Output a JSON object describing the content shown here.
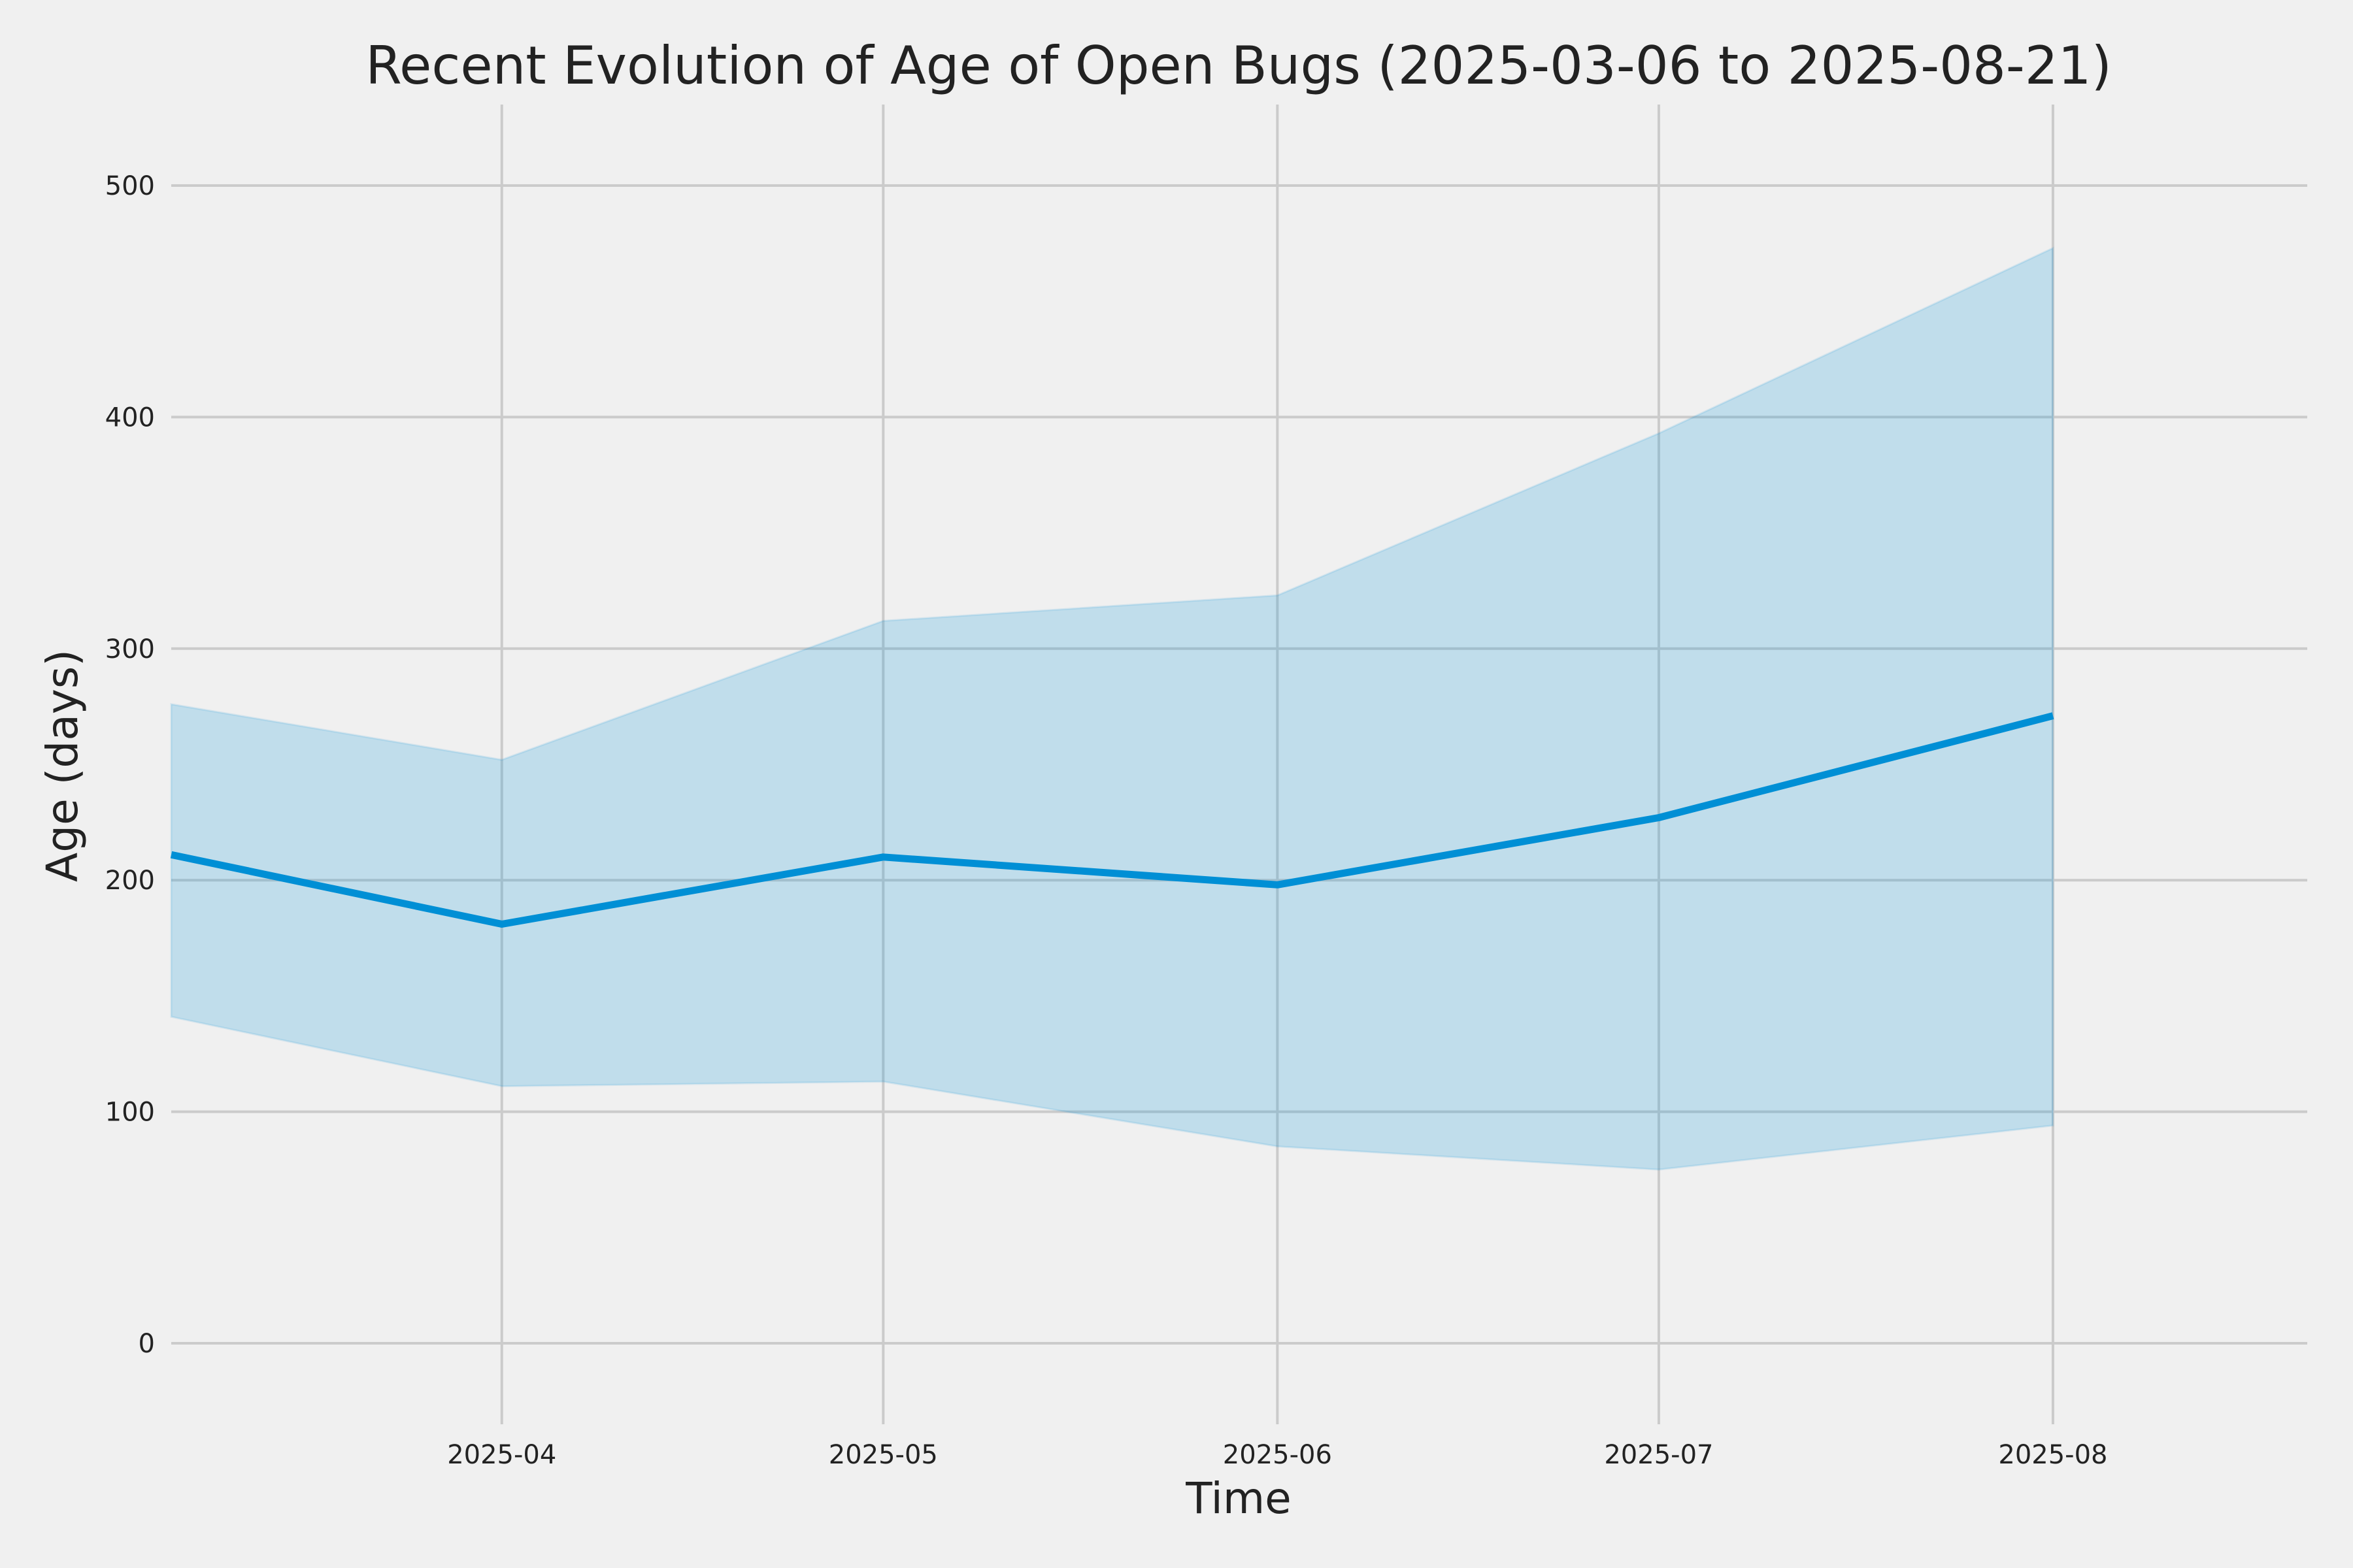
{
  "chart_data": {
    "type": "line",
    "title": "Recent Evolution of Age of Open Bugs (2025-03-06 to 2025-08-21)",
    "xlabel": "Time",
    "ylabel": "Age (days)",
    "x": [
      "2025-03-06",
      "2025-04-01",
      "2025-05-01",
      "2025-06-01",
      "2025-07-01",
      "2025-08-01"
    ],
    "series": [
      {
        "values": [
          211,
          181,
          210,
          198,
          227,
          271
        ],
        "upper": [
          276,
          252,
          312,
          323,
          393,
          473
        ],
        "lower": [
          141,
          111,
          113,
          85,
          75,
          94
        ]
      }
    ],
    "x_ticks": [
      "2025-04",
      "2025-05",
      "2025-06",
      "2025-07",
      "2025-08"
    ],
    "x_tick_dates": [
      "2025-04-01",
      "2025-05-01",
      "2025-06-01",
      "2025-07-01",
      "2025-08-01"
    ],
    "xlim": [
      "2025-03-06",
      "2025-08-21"
    ],
    "y_ticks": [
      0,
      100,
      200,
      300,
      400,
      500
    ],
    "ylim": [
      -35,
      535
    ],
    "grid": true,
    "legend": "none",
    "colors": {
      "line": "#008fd5",
      "band": "#008fd5",
      "background": "#f0f0f0",
      "grid": "#cbcbcb",
      "text": "#222222"
    }
  }
}
